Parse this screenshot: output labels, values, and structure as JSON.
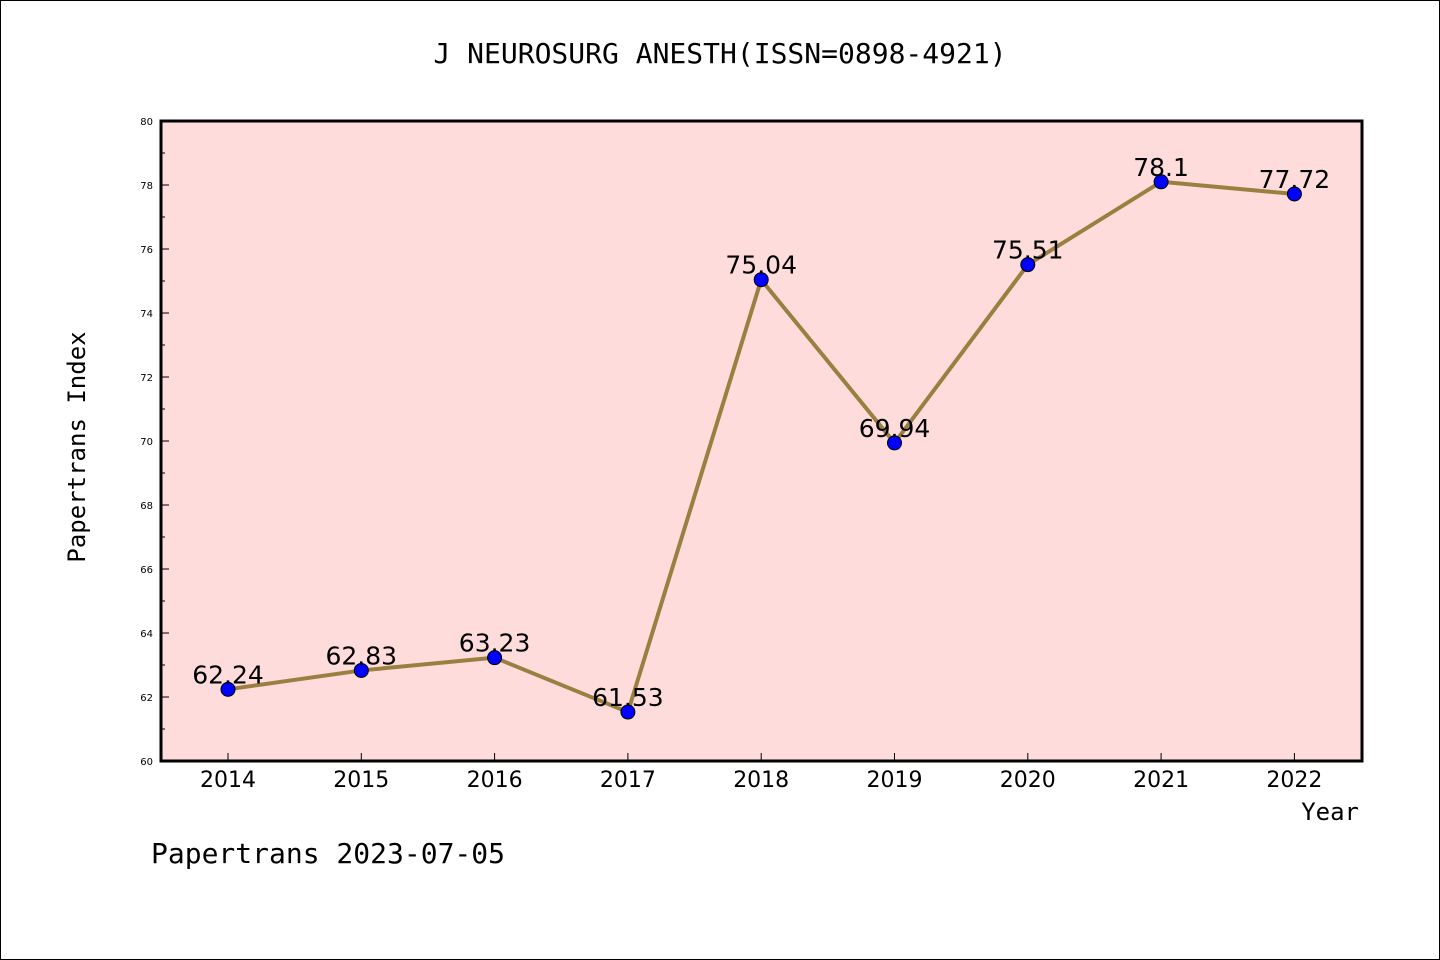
{
  "chart_data": {
    "type": "line",
    "title": "J NEUROSURG ANESTH(ISSN=0898-4921)",
    "xlabel": "Year",
    "ylabel": "Papertrans Index",
    "ylim": [
      60,
      80
    ],
    "yticks": [
      60,
      62,
      64,
      66,
      68,
      70,
      72,
      74,
      76,
      78,
      80
    ],
    "categories": [
      "2014",
      "2015",
      "2016",
      "2017",
      "2018",
      "2019",
      "2020",
      "2021",
      "2022"
    ],
    "values": [
      62.24,
      62.83,
      63.23,
      61.53,
      75.04,
      69.94,
      75.51,
      78.1,
      77.72
    ],
    "value_labels": [
      "62.24",
      "62.83",
      "63.23",
      "61.53",
      "75.04",
      "69.94",
      "75.51",
      "78.1",
      "77.72"
    ],
    "grid": false,
    "colors": {
      "plot_background": "#fddcdb",
      "line": "#9a8040",
      "marker": "#0000ff"
    }
  },
  "footer": "Papertrans 2023-07-05"
}
